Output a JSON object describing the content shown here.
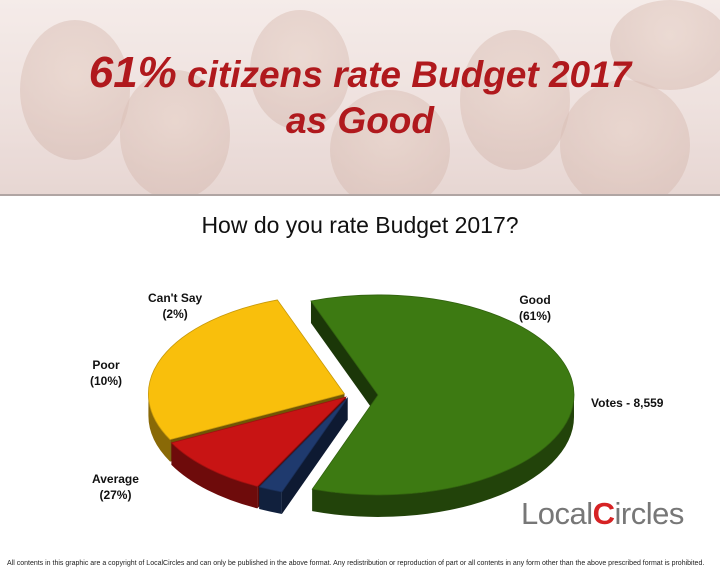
{
  "headline": {
    "line1_pct": "61%",
    "line1_rest": " citizens rate Budget 2017",
    "line2": "as Good"
  },
  "chart_data": {
    "type": "pie",
    "title": "How do you rate Budget 2017?",
    "slices": [
      {
        "label": "Good",
        "value": 61,
        "display": "(61%)",
        "color": "#3d7a12"
      },
      {
        "label": "Can't Say",
        "value": 2,
        "display": "(2%)",
        "color": "#1f3a6e"
      },
      {
        "label": "Poor",
        "value": 10,
        "display": "(10%)",
        "color": "#c81414"
      },
      {
        "label": "Average",
        "value": 27,
        "display": "(27%)",
        "color": "#f9bf0c"
      }
    ],
    "note": "Votes - 8,559"
  },
  "logo": {
    "part1": "Local",
    "part2": "C",
    "part3": "ircles"
  },
  "copyright": "All contents in this graphic are a copyright of LocalCircles and can only be published in the above format. Any redistribution or reproduction of part or all contents in any form other than the above prescribed format is prohibited."
}
